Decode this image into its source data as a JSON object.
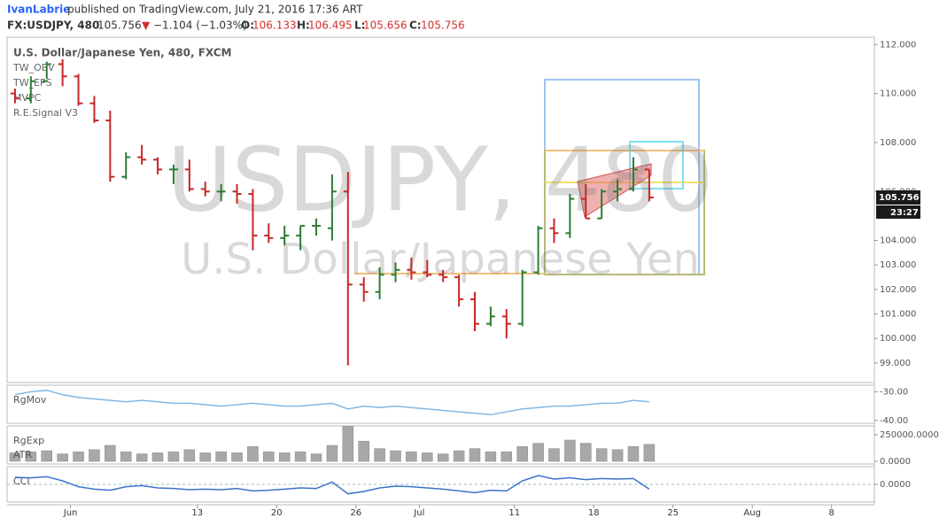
{
  "header": {
    "author": "IvanLabrie",
    "published": "published on TradingView.com, July 21, 2016 17:36 ART",
    "symbol": "FX:USDJPY, 480",
    "last": "105.756",
    "arrow": "▼",
    "change": "−1.104 (−1.03%)",
    "ohlc": [
      {
        "label": "O:",
        "value": "106.133"
      },
      {
        "label": "H:",
        "value": "106.495"
      },
      {
        "label": "L:",
        "value": "105.656"
      },
      {
        "label": "C:",
        "value": "105.756"
      }
    ]
  },
  "chart_data": [
    {
      "type": "ohlc",
      "title": "U.S. Dollar/Japanese Yen, 480, FXCM",
      "indicators": [
        "TW_OBV",
        "TW_EPS",
        "MVPC",
        "R.E.Signal V3"
      ],
      "watermark": [
        "USDJPY, 480",
        "U.S. Dollar/Japanese Yen"
      ],
      "badges": [
        "105.756",
        "23:27"
      ],
      "open": [
        110,
        109.8,
        110.5,
        111.2,
        110.7,
        109.6,
        108.9,
        106.6,
        107.4,
        107.3,
        106.9,
        106.9,
        106.1,
        106.0,
        106.0,
        105.9,
        104.2,
        104.1,
        104.2,
        104.6,
        104.5,
        106.0,
        102.2,
        101.9,
        102.6,
        102.8,
        102.7,
        102.6,
        102.5,
        101.6,
        100.6,
        100.9,
        100.6,
        102.7,
        104.5,
        104.3,
        105.7,
        104.9,
        106.0,
        106.1,
        106.9
      ],
      "high": [
        110.2,
        110.7,
        111.3,
        111.4,
        110.8,
        109.9,
        109.3,
        107.6,
        107.9,
        107.4,
        107.1,
        107.3,
        106.4,
        106.3,
        106.3,
        106.1,
        104.7,
        104.6,
        104.6,
        104.9,
        106.7,
        106.8,
        102.5,
        102.9,
        103.1,
        103.3,
        103.2,
        102.8,
        102.6,
        101.9,
        101.3,
        101.2,
        102.8,
        104.6,
        104.9,
        105.9,
        106.3,
        106.1,
        106.5,
        107.4,
        106.9
      ],
      "low": [
        109.6,
        109.6,
        110.6,
        110.3,
        109.5,
        108.8,
        106.4,
        106.5,
        107.1,
        106.7,
        106.3,
        106.0,
        105.8,
        105.6,
        105.5,
        103.6,
        103.9,
        103.8,
        103.6,
        104.2,
        104.0,
        98.9,
        101.5,
        101.6,
        102.3,
        102.4,
        102.5,
        102.3,
        101.3,
        100.3,
        100.5,
        100.0,
        100.5,
        102.6,
        103.9,
        104.1,
        104.9,
        104.9,
        105.6,
        106.0,
        105.6
      ],
      "close": [
        109.8,
        110.5,
        111.2,
        110.7,
        109.6,
        108.9,
        106.6,
        107.4,
        107.3,
        106.9,
        106.9,
        106.1,
        106.0,
        106.0,
        105.9,
        104.2,
        104.1,
        104.2,
        104.6,
        104.6,
        106.0,
        102.2,
        101.9,
        102.6,
        102.8,
        102.7,
        102.6,
        102.5,
        101.6,
        100.6,
        100.9,
        100.6,
        102.7,
        104.5,
        104.3,
        105.7,
        104.9,
        106.0,
        106.1,
        106.9,
        105.756
      ],
      "up_color": "#2e7d32",
      "down_color": "#c62828",
      "ylim": [
        98.2,
        112.3
      ],
      "yticks": [
        {
          "value": 99,
          "label": "99.000"
        },
        {
          "value": 100,
          "label": "100.000"
        },
        {
          "value": 101,
          "label": "101.000"
        },
        {
          "value": 102,
          "label": "102.000"
        },
        {
          "value": 103,
          "label": "103.000"
        },
        {
          "value": 104,
          "label": "104.000"
        },
        {
          "value": 106,
          "label": "106.000"
        },
        {
          "value": 108,
          "label": "108.000"
        },
        {
          "value": 110,
          "label": "110.000"
        },
        {
          "value": 112,
          "label": "112.000"
        }
      ],
      "xlim": [
        0,
        54.7
      ],
      "xticks": [
        {
          "value": 4,
          "label": "Jun"
        },
        {
          "value": 12,
          "label": "13"
        },
        {
          "value": 17,
          "label": "20"
        },
        {
          "value": 22,
          "label": "26"
        },
        {
          "value": 26,
          "label": "Jul"
        },
        {
          "value": 32,
          "label": "11"
        },
        {
          "value": 37,
          "label": "18"
        },
        {
          "value": 42,
          "label": "25"
        },
        {
          "value": 47,
          "label": "Aug"
        },
        {
          "value": 52,
          "label": "8"
        }
      ]
    },
    {
      "type": "line",
      "title": "RgMov",
      "color": "#7fb8e6",
      "values": [
        -31,
        -30,
        -29.5,
        -31,
        -32,
        -32.5,
        -33,
        -33.5,
        -33,
        -33.5,
        -34,
        -34,
        -34.5,
        -35,
        -34.5,
        -34,
        -34.5,
        -35,
        -35,
        -34.5,
        -34,
        -36,
        -35,
        -35.5,
        -35,
        -35.5,
        -36,
        -36.5,
        -37,
        -37.5,
        -38,
        -37,
        -36,
        -35.5,
        -35,
        -35,
        -34.5,
        -34,
        -34,
        -33,
        -33.5
      ],
      "ylim": [
        -41,
        -27.7
      ],
      "yticks": [
        {
          "value": -30,
          "label": "-30.00"
        },
        {
          "value": -40,
          "label": "-40.00"
        }
      ]
    },
    {
      "type": "bar",
      "title": "RgExp",
      "subtitle": "ATR",
      "color": "#a8a8a8",
      "values": [
        80000,
        90000,
        100000,
        70000,
        90000,
        110000,
        150000,
        90000,
        70000,
        80000,
        90000,
        110000,
        80000,
        90000,
        80000,
        140000,
        90000,
        80000,
        90000,
        70000,
        150000,
        330000,
        190000,
        120000,
        100000,
        90000,
        80000,
        70000,
        100000,
        120000,
        90000,
        90000,
        140000,
        170000,
        120000,
        200000,
        170000,
        120000,
        110000,
        140000,
        160000
      ],
      "ylim": [
        -25000,
        333000
      ],
      "yticks": [
        {
          "value": 250000,
          "label": "250000.0000"
        },
        {
          "value": 0,
          "label": "0.0000"
        }
      ]
    },
    {
      "type": "line",
      "title": "CCI",
      "color": "#3b73c9",
      "values": [
        120,
        110,
        130,
        60,
        -40,
        -80,
        -100,
        -40,
        -20,
        -60,
        -70,
        -90,
        -80,
        -90,
        -70,
        -110,
        -100,
        -80,
        -60,
        -70,
        40,
        -160,
        -120,
        -60,
        -30,
        -40,
        -60,
        -80,
        -110,
        -140,
        -100,
        -110,
        60,
        150,
        90,
        110,
        80,
        100,
        90,
        100,
        -80
      ],
      "ylim": [
        -300,
        300
      ],
      "yticks": [
        {
          "value": 0,
          "label": "0.0000"
        }
      ]
    }
  ]
}
